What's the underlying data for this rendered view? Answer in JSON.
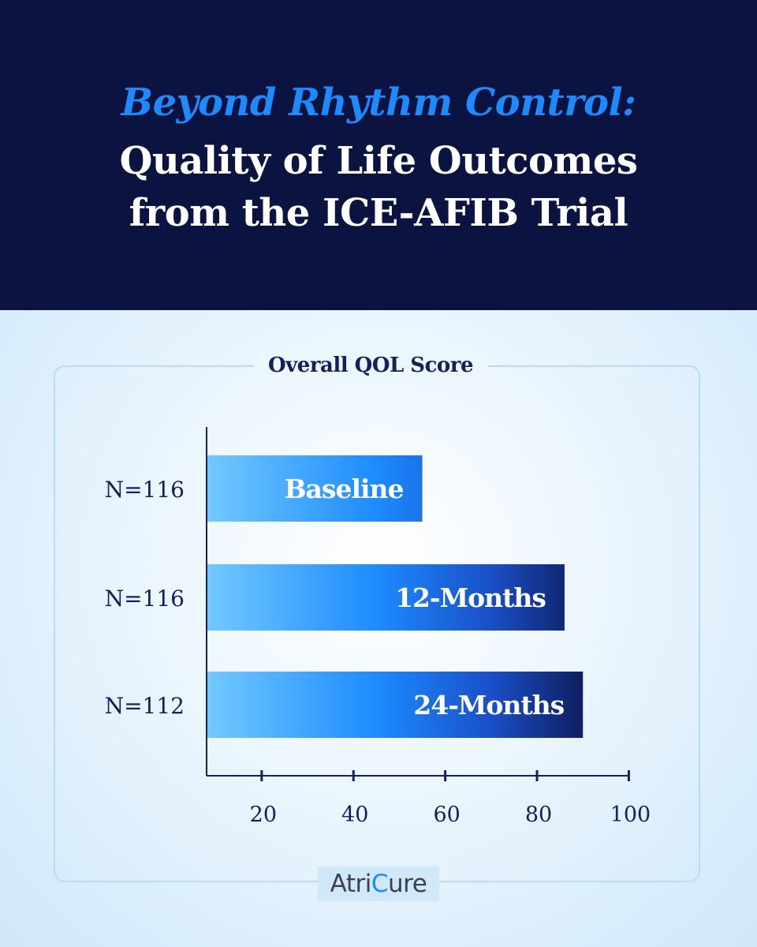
{
  "header": {
    "title_line1": "Beyond Rhythm Control:",
    "title_line2": "Quality of Life Outcomes",
    "title_line3": "from the ICE-AFIB Trial"
  },
  "colors": {
    "header_bg": "#0b1340",
    "accent": "#1d8bff",
    "bar_light": "#6cc6ff",
    "bar_dark": "#0f1d5e",
    "axis": "#16205a"
  },
  "chart_data": {
    "type": "bar",
    "orientation": "horizontal",
    "title": "Overall QOL Score",
    "categories": [
      "Baseline",
      "12-Months",
      "24-Months"
    ],
    "sample_sizes": [
      "N=116",
      "N=116",
      "N=112"
    ],
    "values": [
      55,
      86,
      90
    ],
    "xticks": [
      20,
      40,
      60,
      80,
      100
    ],
    "xlim": [
      8,
      100
    ],
    "grid": false
  },
  "logo": {
    "text_before": "Atri",
    "text_mark": "C",
    "text_after": "ure"
  }
}
